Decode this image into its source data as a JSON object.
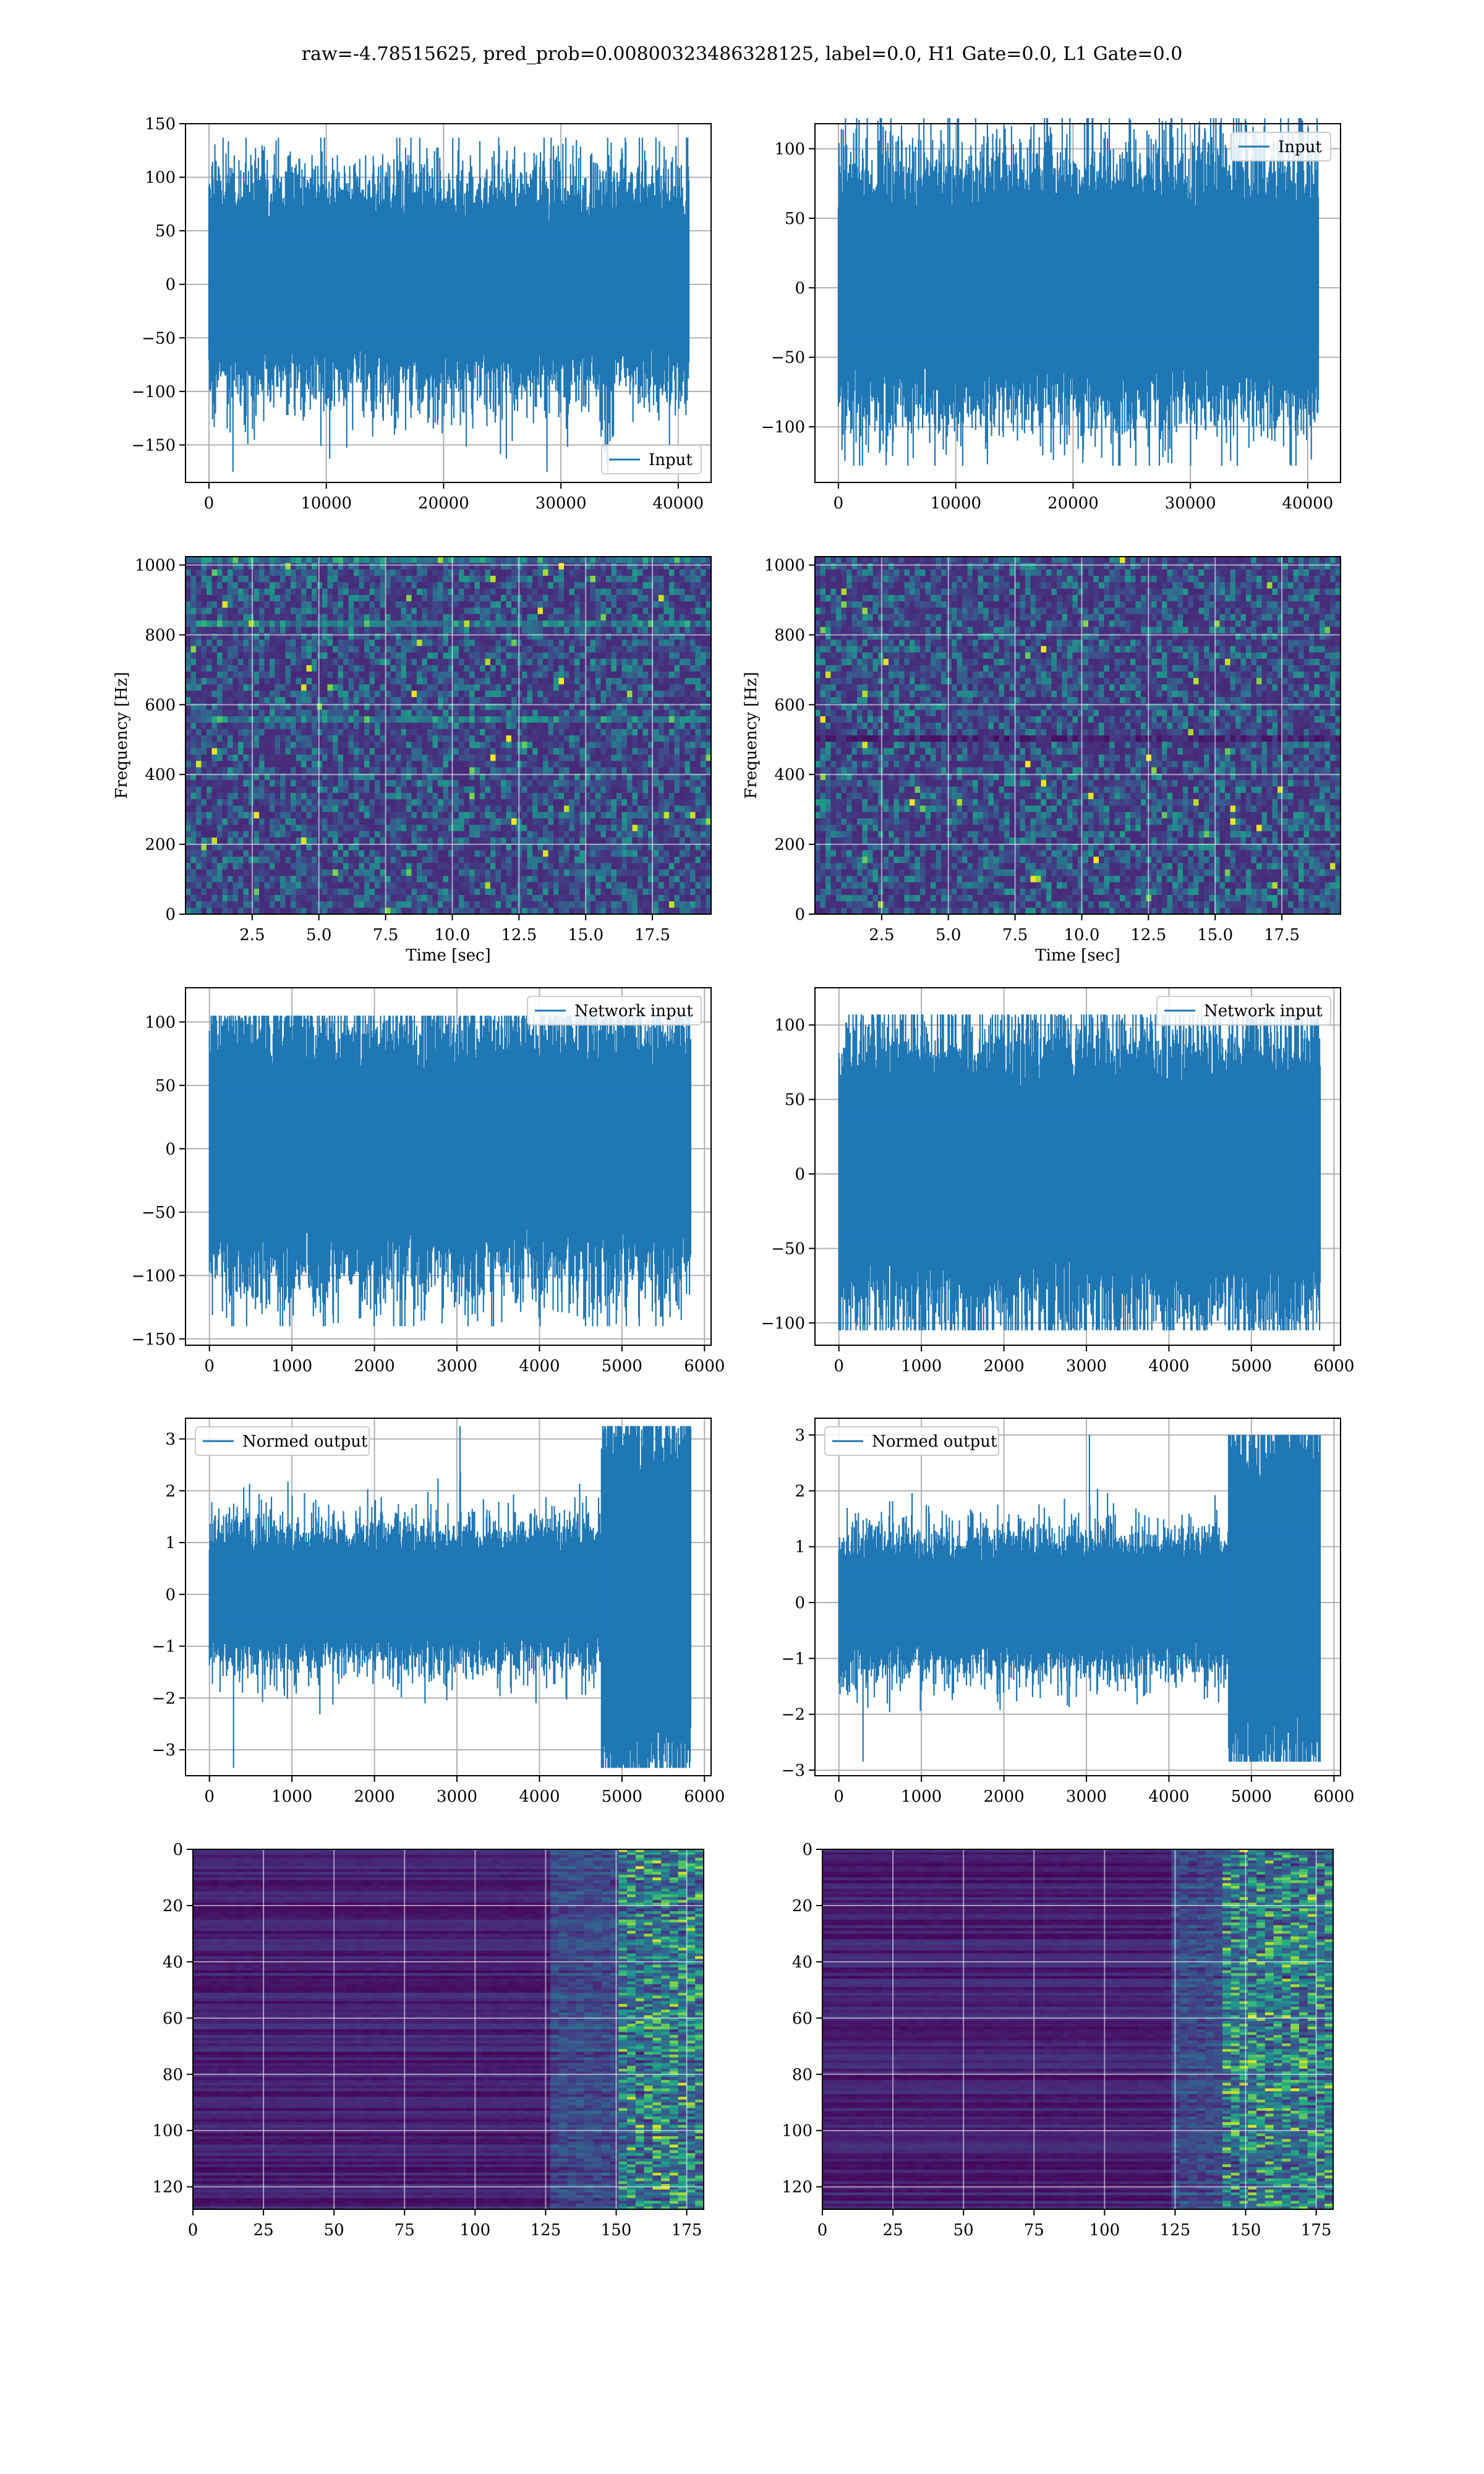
{
  "figure": {
    "suptitle": "raw=-4.78515625, pred_prob=0.00800323486328125, label=0.0, H1 Gate=0.0, L1 Gate=0.0",
    "line_color": "#1f77b4",
    "grid_color": "#b0b0b0"
  },
  "chart_data": [
    {
      "id": "input_h1",
      "type": "line",
      "title": "",
      "xlabel": "",
      "ylabel": "",
      "xlim": [
        -2000,
        42800
      ],
      "ylim": [
        -185,
        150
      ],
      "xticks": [
        0,
        10000,
        20000,
        30000,
        40000
      ],
      "xtick_labels": [
        "0",
        "10000",
        "20000",
        "30000",
        "40000"
      ],
      "yticks": [
        -150,
        -100,
        -50,
        0,
        50,
        100,
        150
      ],
      "ytick_labels": [
        "−150",
        "−100",
        "−50",
        "0",
        "50",
        "100",
        "150"
      ],
      "grid": true,
      "legend_loc": "lower-right",
      "series": [
        {
          "name": "Input",
          "n_samples": 40960,
          "sigma": 27,
          "envelope": {
            "min": -175,
            "max": 137
          }
        }
      ]
    },
    {
      "id": "input_l1",
      "type": "line",
      "title": "",
      "xlabel": "",
      "ylabel": "",
      "xlim": [
        -2000,
        42800
      ],
      "ylim": [
        -140,
        118
      ],
      "xticks": [
        0,
        10000,
        20000,
        30000,
        40000
      ],
      "xtick_labels": [
        "0",
        "10000",
        "20000",
        "30000",
        "40000"
      ],
      "yticks": [
        -100,
        -50,
        0,
        50,
        100
      ],
      "ytick_labels": [
        "−100",
        "−50",
        "0",
        "50",
        "100"
      ],
      "grid": true,
      "legend_loc": "upper-right",
      "series": [
        {
          "name": "Input",
          "n_samples": 40960,
          "sigma": 25,
          "envelope": {
            "min": -128,
            "max": 122
          }
        }
      ]
    },
    {
      "id": "spec_h1",
      "type": "heatmap",
      "colormap": "viridis",
      "title": "",
      "xlabel": "Time [sec]",
      "ylabel": "Frequency [Hz]",
      "xlim": [
        0,
        19.7
      ],
      "ylim": [
        0,
        1024
      ],
      "xticks": [
        2.5,
        5.0,
        7.5,
        10.0,
        12.5,
        15.0,
        17.5
      ],
      "xtick_labels": [
        "2.5",
        "5.0",
        "7.5",
        "10.0",
        "12.5",
        "15.0",
        "17.5"
      ],
      "yticks": [
        0,
        200,
        400,
        600,
        800,
        1000
      ],
      "ytick_labels": [
        "0",
        "200",
        "400",
        "600",
        "800",
        "1000"
      ],
      "grid": true,
      "bright_bands_hz": [
        1015,
        830,
        555
      ],
      "dark_bands_hz": []
    },
    {
      "id": "spec_l1",
      "type": "heatmap",
      "colormap": "viridis",
      "title": "",
      "xlabel": "Time [sec]",
      "ylabel": "Frequency [Hz]",
      "xlim": [
        0,
        19.7
      ],
      "ylim": [
        0,
        1024
      ],
      "xticks": [
        2.5,
        5.0,
        7.5,
        10.0,
        12.5,
        15.0,
        17.5
      ],
      "xtick_labels": [
        "2.5",
        "5.0",
        "7.5",
        "10.0",
        "12.5",
        "15.0",
        "17.5"
      ],
      "yticks": [
        0,
        200,
        400,
        600,
        800,
        1000
      ],
      "ytick_labels": [
        "0",
        "200",
        "400",
        "600",
        "800",
        "1000"
      ],
      "grid": true,
      "bright_bands_hz": [],
      "dark_bands_hz": [
        505
      ]
    },
    {
      "id": "netin_h1",
      "type": "line",
      "title": "",
      "xlabel": "",
      "ylabel": "",
      "xlim": [
        -290,
        6080
      ],
      "ylim": [
        -155,
        127
      ],
      "xticks": [
        0,
        1000,
        2000,
        3000,
        4000,
        5000,
        6000
      ],
      "xtick_labels": [
        "0",
        "1000",
        "2000",
        "3000",
        "4000",
        "5000",
        "6000"
      ],
      "yticks": [
        -150,
        -100,
        -50,
        0,
        50,
        100
      ],
      "ytick_labels": [
        "−150",
        "−100",
        "−50",
        "0",
        "50",
        "100"
      ],
      "grid": true,
      "legend_loc": "upper-right",
      "series": [
        {
          "name": "Network input",
          "n_samples": 5840,
          "sigma": 28,
          "envelope": {
            "min": -140,
            "max": 105
          }
        }
      ]
    },
    {
      "id": "netin_l1",
      "type": "line",
      "title": "",
      "xlabel": "",
      "ylabel": "",
      "xlim": [
        -290,
        6080
      ],
      "ylim": [
        -115,
        125
      ],
      "xticks": [
        0,
        1000,
        2000,
        3000,
        4000,
        5000,
        6000
      ],
      "xtick_labels": [
        "0",
        "1000",
        "2000",
        "3000",
        "4000",
        "5000",
        "6000"
      ],
      "yticks": [
        -100,
        -50,
        0,
        50,
        100
      ],
      "ytick_labels": [
        "−100",
        "−50",
        "0",
        "50",
        "100"
      ],
      "grid": true,
      "legend_loc": "upper-right",
      "series": [
        {
          "name": "Network input",
          "n_samples": 5840,
          "sigma": 26,
          "envelope": {
            "min": -105,
            "max": 107
          }
        }
      ]
    },
    {
      "id": "normed_h1",
      "type": "line",
      "title": "",
      "xlabel": "",
      "ylabel": "",
      "xlim": [
        -290,
        6080
      ],
      "ylim": [
        -3.5,
        3.4
      ],
      "xticks": [
        0,
        1000,
        2000,
        3000,
        4000,
        5000,
        6000
      ],
      "xtick_labels": [
        "0",
        "1000",
        "2000",
        "3000",
        "4000",
        "5000",
        "6000"
      ],
      "yticks": [
        -3,
        -2,
        -1,
        0,
        1,
        2,
        3
      ],
      "ytick_labels": [
        "−3",
        "−2",
        "−1",
        "0",
        "1",
        "2",
        "3"
      ],
      "grid": true,
      "legend_loc": "upper-left",
      "series": [
        {
          "name": "Normed output",
          "n_samples": 5840,
          "sigma": 0.36,
          "burst_start": 4750,
          "burst_sigma": 1.0,
          "envelope": {
            "min": -3.35,
            "max": 3.25
          }
        }
      ]
    },
    {
      "id": "normed_l1",
      "type": "line",
      "title": "",
      "xlabel": "",
      "ylabel": "",
      "xlim": [
        -290,
        6080
      ],
      "ylim": [
        -3.1,
        3.3
      ],
      "xticks": [
        0,
        1000,
        2000,
        3000,
        4000,
        5000,
        6000
      ],
      "xtick_labels": [
        "0",
        "1000",
        "2000",
        "3000",
        "4000",
        "5000",
        "6000"
      ],
      "yticks": [
        -3,
        -2,
        -1,
        0,
        1,
        2,
        3
      ],
      "ytick_labels": [
        "−3",
        "−2",
        "−1",
        "0",
        "1",
        "2",
        "3"
      ],
      "grid": true,
      "legend_loc": "upper-left",
      "series": [
        {
          "name": "Normed output",
          "n_samples": 5840,
          "sigma": 0.33,
          "burst_start": 4720,
          "burst_sigma": 0.9,
          "envelope": {
            "min": -2.85,
            "max": 3.0
          }
        }
      ]
    },
    {
      "id": "feat_h1",
      "type": "heatmap",
      "colormap": "viridis",
      "title": "",
      "xlabel": "",
      "ylabel": "",
      "xlim": [
        0,
        181
      ],
      "ylim": [
        128,
        0
      ],
      "n_rows": 128,
      "n_cols": 181,
      "active_from_col": 125,
      "hot_from_col": 148,
      "xticks": [
        0,
        25,
        50,
        75,
        100,
        125,
        150,
        175
      ],
      "xtick_labels": [
        "0",
        "25",
        "50",
        "75",
        "100",
        "125",
        "150",
        "175"
      ],
      "yticks": [
        0,
        20,
        40,
        60,
        80,
        100,
        120
      ],
      "ytick_labels": [
        "0",
        "20",
        "40",
        "60",
        "80",
        "100",
        "120"
      ],
      "grid": true
    },
    {
      "id": "feat_l1",
      "type": "heatmap",
      "colormap": "viridis",
      "title": "",
      "xlabel": "",
      "ylabel": "",
      "xlim": [
        0,
        181
      ],
      "ylim": [
        128,
        0
      ],
      "n_rows": 128,
      "n_cols": 181,
      "active_from_col": 122,
      "hot_from_col": 140,
      "xticks": [
        0,
        25,
        50,
        75,
        100,
        125,
        150,
        175
      ],
      "xtick_labels": [
        "0",
        "25",
        "50",
        "75",
        "100",
        "125",
        "150",
        "175"
      ],
      "yticks": [
        0,
        20,
        40,
        60,
        80,
        100,
        120
      ],
      "ytick_labels": [
        "0",
        "20",
        "40",
        "60",
        "80",
        "100",
        "120"
      ],
      "grid": true
    }
  ]
}
